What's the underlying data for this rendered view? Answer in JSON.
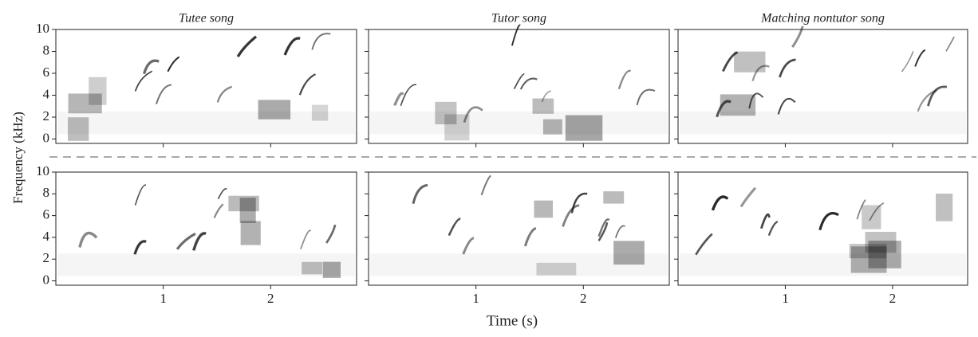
{
  "ylabel": "Frequency (kHz)",
  "xlabel": "Time (s)",
  "chart_data": [
    {
      "type": "spectrogram",
      "title": "Tutee song",
      "xlim": [
        0,
        2.8
      ],
      "ylim": [
        -0.4,
        10
      ],
      "xticks": [
        1,
        2
      ],
      "yticks": [
        0,
        2,
        4,
        6,
        8,
        10
      ]
    },
    {
      "type": "spectrogram",
      "title": "Tutor song",
      "xlim": [
        0,
        2.8
      ],
      "ylim": [
        -0.4,
        10
      ],
      "xticks": [
        1,
        2
      ],
      "yticks": [
        0,
        2,
        4,
        6,
        8,
        10
      ]
    },
    {
      "type": "spectrogram",
      "title": "Matching nontutor song",
      "xlim": [
        0,
        2.7
      ],
      "ylim": [
        -0.4,
        10
      ],
      "xticks": [
        1,
        2
      ],
      "yticks": [
        0,
        2,
        4,
        6,
        8,
        10
      ]
    },
    {
      "type": "spectrogram",
      "xlim": [
        0,
        2.8
      ],
      "ylim": [
        -0.4,
        10
      ],
      "xticks": [
        1,
        2
      ],
      "yticks": [
        0,
        2,
        4,
        6,
        8,
        10
      ]
    },
    {
      "type": "spectrogram",
      "xlim": [
        0,
        2.8
      ],
      "ylim": [
        -0.4,
        10
      ],
      "xticks": [
        1,
        2
      ],
      "yticks": [
        0,
        2,
        4,
        6,
        8,
        10
      ]
    },
    {
      "type": "spectrogram",
      "xlim": [
        0,
        2.7
      ],
      "ylim": [
        -0.4,
        10
      ],
      "xticks": [
        1,
        2
      ],
      "yticks": [
        0,
        2,
        4,
        6,
        8,
        10
      ]
    }
  ]
}
